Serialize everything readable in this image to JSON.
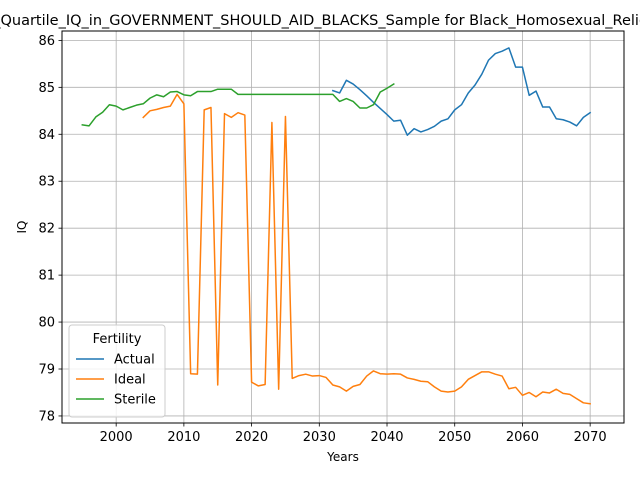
{
  "chart_data": {
    "type": "line",
    "title": "Lower_Quartile_IQ_in_GOVERNMENT_SHOULD_AID_BLACKS_Sample for Black_Homosexual_Religious_people",
    "xlabel": "Years",
    "ylabel": "IQ",
    "xlim": [
      1992,
      2075
    ],
    "ylim": [
      77.85,
      86.2
    ],
    "xticks": [
      "2000",
      "2010",
      "2020",
      "2030",
      "2040",
      "2050",
      "2060",
      "2070"
    ],
    "yticks": [
      "78",
      "79",
      "80",
      "81",
      "82",
      "83",
      "84",
      "85",
      "86"
    ],
    "grid": true,
    "legend": {
      "title": "Fertility",
      "position": "lower-left"
    },
    "series": [
      {
        "name": "Actual",
        "color": "#1f77b4",
        "points": [
          [
            2032,
            84.93
          ],
          [
            2033,
            84.88
          ],
          [
            2034,
            85.15
          ],
          [
            2035,
            85.07
          ],
          [
            2036,
            84.95
          ],
          [
            2037,
            84.82
          ],
          [
            2038,
            84.68
          ],
          [
            2039,
            84.55
          ],
          [
            2040,
            84.42
          ],
          [
            2041,
            84.28
          ],
          [
            2042,
            84.3
          ],
          [
            2043,
            83.98
          ],
          [
            2044,
            84.12
          ],
          [
            2045,
            84.05
          ],
          [
            2046,
            84.1
          ],
          [
            2047,
            84.17
          ],
          [
            2048,
            84.28
          ],
          [
            2049,
            84.33
          ],
          [
            2050,
            84.52
          ],
          [
            2051,
            84.63
          ],
          [
            2052,
            84.88
          ],
          [
            2053,
            85.05
          ],
          [
            2054,
            85.28
          ],
          [
            2055,
            85.58
          ],
          [
            2056,
            85.72
          ],
          [
            2057,
            85.77
          ],
          [
            2058,
            85.84
          ],
          [
            2059,
            85.43
          ],
          [
            2060,
            85.43
          ],
          [
            2061,
            84.83
          ],
          [
            2062,
            84.92
          ],
          [
            2063,
            84.58
          ],
          [
            2064,
            84.58
          ],
          [
            2065,
            84.33
          ],
          [
            2066,
            84.31
          ],
          [
            2067,
            84.26
          ],
          [
            2068,
            84.18
          ],
          [
            2069,
            84.36
          ],
          [
            2070,
            84.46
          ]
        ]
      },
      {
        "name": "Ideal",
        "color": "#ff7f0e",
        "points": [
          [
            2004,
            84.36
          ],
          [
            2005,
            84.5
          ],
          [
            2006,
            84.53
          ],
          [
            2007,
            84.57
          ],
          [
            2008,
            84.6
          ],
          [
            2009,
            84.85
          ],
          [
            2010,
            84.65
          ],
          [
            2011,
            78.9
          ],
          [
            2012,
            78.89
          ],
          [
            2013,
            84.52
          ],
          [
            2014,
            84.57
          ],
          [
            2015,
            78.66
          ],
          [
            2016,
            84.44
          ],
          [
            2017,
            84.36
          ],
          [
            2018,
            84.46
          ],
          [
            2019,
            84.41
          ],
          [
            2020,
            78.72
          ],
          [
            2021,
            78.64
          ],
          [
            2022,
            78.67
          ],
          [
            2023,
            84.25
          ],
          [
            2024,
            78.57
          ],
          [
            2025,
            84.38
          ],
          [
            2026,
            78.8
          ],
          [
            2027,
            78.86
          ],
          [
            2028,
            78.89
          ],
          [
            2029,
            78.85
          ],
          [
            2030,
            78.86
          ],
          [
            2031,
            78.82
          ],
          [
            2032,
            78.66
          ],
          [
            2033,
            78.62
          ],
          [
            2034,
            78.53
          ],
          [
            2035,
            78.63
          ],
          [
            2036,
            78.67
          ],
          [
            2037,
            78.85
          ],
          [
            2038,
            78.96
          ],
          [
            2039,
            78.9
          ],
          [
            2040,
            78.89
          ],
          [
            2041,
            78.9
          ],
          [
            2042,
            78.89
          ],
          [
            2043,
            78.81
          ],
          [
            2044,
            78.78
          ],
          [
            2045,
            78.74
          ],
          [
            2046,
            78.73
          ],
          [
            2047,
            78.62
          ],
          [
            2048,
            78.53
          ],
          [
            2049,
            78.51
          ],
          [
            2050,
            78.53
          ],
          [
            2051,
            78.62
          ],
          [
            2052,
            78.78
          ],
          [
            2053,
            78.86
          ],
          [
            2054,
            78.94
          ],
          [
            2055,
            78.94
          ],
          [
            2056,
            78.89
          ],
          [
            2057,
            78.85
          ],
          [
            2058,
            78.58
          ],
          [
            2059,
            78.61
          ],
          [
            2060,
            78.44
          ],
          [
            2061,
            78.5
          ],
          [
            2062,
            78.41
          ],
          [
            2063,
            78.51
          ],
          [
            2064,
            78.49
          ],
          [
            2065,
            78.57
          ],
          [
            2066,
            78.48
          ],
          [
            2067,
            78.46
          ],
          [
            2068,
            78.37
          ],
          [
            2069,
            78.28
          ],
          [
            2070,
            78.26
          ]
        ]
      },
      {
        "name": "Sterile",
        "color": "#2ca02c",
        "points": [
          [
            1995,
            84.2
          ],
          [
            1996,
            84.18
          ],
          [
            1997,
            84.37
          ],
          [
            1998,
            84.47
          ],
          [
            1999,
            84.63
          ],
          [
            2000,
            84.6
          ],
          [
            2001,
            84.52
          ],
          [
            2002,
            84.57
          ],
          [
            2003,
            84.62
          ],
          [
            2004,
            84.65
          ],
          [
            2005,
            84.77
          ],
          [
            2006,
            84.84
          ],
          [
            2007,
            84.8
          ],
          [
            2008,
            84.9
          ],
          [
            2009,
            84.91
          ],
          [
            2010,
            84.84
          ],
          [
            2011,
            84.82
          ],
          [
            2012,
            84.91
          ],
          [
            2013,
            84.91
          ],
          [
            2014,
            84.91
          ],
          [
            2015,
            84.96
          ],
          [
            2016,
            84.96
          ],
          [
            2017,
            84.96
          ],
          [
            2018,
            84.85
          ],
          [
            2019,
            84.85
          ],
          [
            2020,
            84.85
          ],
          [
            2021,
            84.85
          ],
          [
            2022,
            84.85
          ],
          [
            2023,
            84.85
          ],
          [
            2024,
            84.85
          ],
          [
            2025,
            84.85
          ],
          [
            2026,
            84.85
          ],
          [
            2027,
            84.85
          ],
          [
            2028,
            84.85
          ],
          [
            2029,
            84.85
          ],
          [
            2030,
            84.85
          ],
          [
            2031,
            84.85
          ],
          [
            2032,
            84.85
          ],
          [
            2033,
            84.7
          ],
          [
            2034,
            84.76
          ],
          [
            2035,
            84.7
          ],
          [
            2036,
            84.56
          ],
          [
            2037,
            84.56
          ],
          [
            2038,
            84.63
          ],
          [
            2039,
            84.9
          ],
          [
            2040,
            84.98
          ],
          [
            2041,
            85.07
          ]
        ]
      }
    ]
  }
}
